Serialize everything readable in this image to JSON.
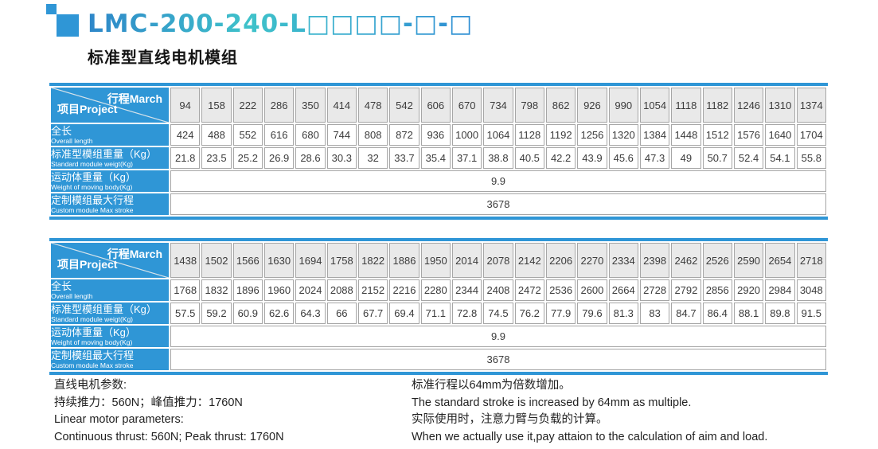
{
  "header": {
    "model_code": "LMC-200-240-L□□□□-□-□",
    "subtitle": "标准型直线电机模组"
  },
  "corner": {
    "top": "行程March",
    "bottom": "项目Project"
  },
  "row_labels": [
    {
      "zh": "全长",
      "en": "Overall length"
    },
    {
      "zh": "标准型模组重量（Kg）",
      "en": "Standard module weigt(Kg)"
    },
    {
      "zh": "运动体重量（Kg）",
      "en": "Weight of moving body(Kg)"
    },
    {
      "zh": "定制模组最大行程",
      "en": "Custom module Max stroke"
    }
  ],
  "tables": [
    {
      "stroke": [
        94,
        158,
        222,
        286,
        350,
        414,
        478,
        542,
        606,
        670,
        734,
        798,
        862,
        926,
        990,
        1054,
        1118,
        1182,
        1246,
        1310,
        1374
      ],
      "overall_length": [
        424,
        488,
        552,
        616,
        680,
        744,
        808,
        872,
        936,
        1000,
        1064,
        1128,
        1192,
        1256,
        1320,
        1384,
        1448,
        1512,
        1576,
        1640,
        1704
      ],
      "module_weight": [
        21.8,
        23.5,
        25.2,
        26.9,
        28.6,
        30.3,
        32,
        33.7,
        35.4,
        37.1,
        38.8,
        40.5,
        42.2,
        43.9,
        45.6,
        47.3,
        49,
        50.7,
        52.4,
        54.1,
        55.8
      ],
      "moving_body_weight": "9.9",
      "custom_max_stroke": "3678"
    },
    {
      "stroke": [
        1438,
        1502,
        1566,
        1630,
        1694,
        1758,
        1822,
        1886,
        1950,
        2014,
        2078,
        2142,
        2206,
        2270,
        2334,
        2398,
        2462,
        2526,
        2590,
        2654,
        2718
      ],
      "overall_length": [
        1768,
        1832,
        1896,
        1960,
        2024,
        2088,
        2152,
        2216,
        2280,
        2344,
        2408,
        2472,
        2536,
        2600,
        2664,
        2728,
        2792,
        2856,
        2920,
        2984,
        3048
      ],
      "module_weight": [
        57.5,
        59.2,
        60.9,
        62.6,
        64.3,
        66,
        67.7,
        69.4,
        71.1,
        72.8,
        74.5,
        76.2,
        77.9,
        79.6,
        81.3,
        83,
        84.7,
        86.4,
        88.1,
        89.8,
        91.5
      ],
      "moving_body_weight": "9.9",
      "custom_max_stroke": "3678"
    }
  ],
  "footer": {
    "left": [
      "直线电机参数:",
      "持续推力：560N；峰值推力：1760N",
      "Linear motor parameters:",
      "Continuous thrust: 560N; Peak thrust: 1760N"
    ],
    "right": [
      "标准行程以64mm为倍数增加。",
      "The standard stroke is increased by 64mm as multiple.",
      "实际使用时，注意力臂与负载的计算。",
      "When we actually use it,pay attaion to the calculation of aim and load."
    ]
  }
}
